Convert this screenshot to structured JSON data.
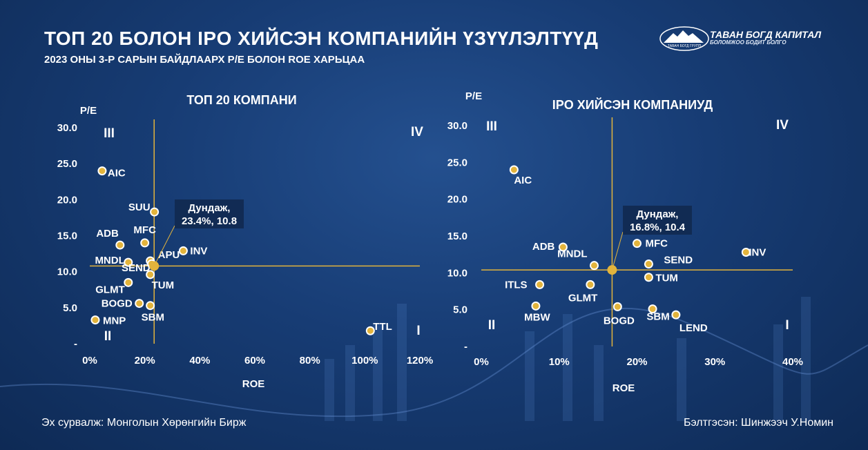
{
  "header": {
    "title": "ТОП 20 БОЛОН IPO ХИЙСЭН КОМПАНИЙН ҮЗҮҮЛЭЛТҮҮД",
    "subtitle": "2023 ОНЫ 3-Р САРЫН БАЙДЛААРХ P/E БОЛОН ROE ХАРЬЦАА"
  },
  "logo": {
    "name": "ТАВАН БОГД КАПИТАЛ",
    "tagline": "БОЛОМЖОО БОДИТ БОЛГО",
    "emblem_text": "ТАВАН БОГД ГРУПП",
    "icon": "mountain-logo-icon"
  },
  "footer": {
    "source": "Эх сурвалж: Монголын Хөрөнгийн Бирж",
    "prepared_by": "Бэлтгэсэн: Шинжээч У.Номин"
  },
  "colors": {
    "accent": "#e3b43c",
    "point_fill": "#e3b43c",
    "point_stroke": "#ffffff",
    "callout_bg": "#10284e"
  },
  "chart_data": [
    {
      "type": "scatter",
      "title": "ТОП 20 КОМПАНИ",
      "xlabel": "ROE",
      "ylabel": "P/E",
      "xlim": [
        0,
        120
      ],
      "ylim": [
        0,
        30
      ],
      "x_ticks": [
        "0%",
        "20%",
        "40%",
        "60%",
        "80%",
        "100%",
        "120%"
      ],
      "y_ticks": [
        "-",
        "5.0",
        "10.0",
        "15.0",
        "20.0",
        "25.0",
        "30.0"
      ],
      "quadrants": [
        "III",
        "IV",
        "II",
        "I"
      ],
      "average": {
        "x": 23.4,
        "y": 10.8,
        "label_line1": "Дундаж,",
        "label_line2": "23.4%, 10.8"
      },
      "points": [
        {
          "label": "AIC",
          "x": 4.5,
          "y": 24.0
        },
        {
          "label": "SUU",
          "x": 23.5,
          "y": 18.3
        },
        {
          "label": "ADB",
          "x": 11.0,
          "y": 13.7
        },
        {
          "label": "MFC",
          "x": 20.0,
          "y": 14.0
        },
        {
          "label": "MNDL",
          "x": 14.0,
          "y": 11.3
        },
        {
          "label": "APU",
          "x": 22.0,
          "y": 11.5
        },
        {
          "label": "INV",
          "x": 34.0,
          "y": 12.9
        },
        {
          "label": "SEND",
          "x": 22.5,
          "y": 11.1
        },
        {
          "label": "TUM",
          "x": 22.0,
          "y": 9.6
        },
        {
          "label": "GLMT",
          "x": 14.0,
          "y": 8.5
        },
        {
          "label": "BOGD",
          "x": 18.0,
          "y": 5.6
        },
        {
          "label": "SBM",
          "x": 22.0,
          "y": 5.3
        },
        {
          "label": "MNP",
          "x": 2.0,
          "y": 3.3
        },
        {
          "label": "TTL",
          "x": 102.0,
          "y": 1.8
        }
      ]
    },
    {
      "type": "scatter",
      "title": "IPO ХИЙСЭН КОМПАНИУД",
      "xlabel": "ROE",
      "ylabel": "P/E",
      "xlim": [
        0,
        40
      ],
      "ylim": [
        0,
        30
      ],
      "x_ticks": [
        "0%",
        "10%",
        "20%",
        "30%",
        "40%"
      ],
      "y_ticks": [
        "-",
        "5.0",
        "10.0",
        "15.0",
        "20.0",
        "25.0",
        "30.0"
      ],
      "quadrants": [
        "III",
        "IV",
        "II",
        "I"
      ],
      "average": {
        "x": 16.8,
        "y": 10.4,
        "label_line1": "Дундаж,",
        "label_line2": "16.8%,  10.4"
      },
      "points": [
        {
          "label": "AIC",
          "x": 4.2,
          "y": 24.0
        },
        {
          "label": "ADB",
          "x": 10.5,
          "y": 13.5
        },
        {
          "label": "MNDL",
          "x": 14.5,
          "y": 11.0
        },
        {
          "label": "MFC",
          "x": 20.0,
          "y": 14.0
        },
        {
          "label": "SEND",
          "x": 21.5,
          "y": 11.2
        },
        {
          "label": "TUM",
          "x": 21.5,
          "y": 9.4
        },
        {
          "label": "INV",
          "x": 34.0,
          "y": 12.8
        },
        {
          "label": "ITLS",
          "x": 7.5,
          "y": 8.4
        },
        {
          "label": "GLMT",
          "x": 14.0,
          "y": 8.4
        },
        {
          "label": "MBW",
          "x": 7.0,
          "y": 5.5
        },
        {
          "label": "BOGD",
          "x": 17.5,
          "y": 5.4
        },
        {
          "label": "SBM",
          "x": 22.0,
          "y": 5.1
        },
        {
          "label": "LEND",
          "x": 25.0,
          "y": 4.3
        }
      ]
    }
  ]
}
